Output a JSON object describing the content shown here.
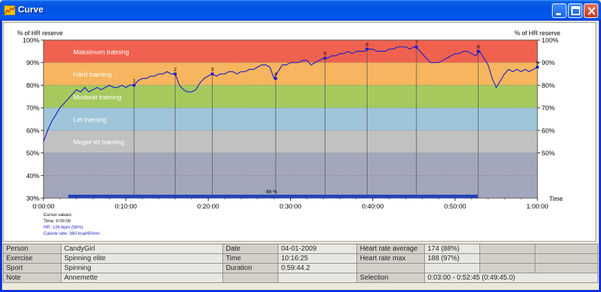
{
  "window": {
    "title": "Curve",
    "buttons": {
      "minimize": "minimize",
      "maximize": "maximize",
      "close": "close"
    }
  },
  "chart": {
    "left_axis_title": "% of HR reserve",
    "right_axis_title": "% of HR reserve",
    "time_axis_label": "Time",
    "zones": [
      {
        "name": "Maksimum træning",
        "from": 90,
        "to": 100,
        "color": "#f0624f"
      },
      {
        "name": "Hård træning",
        "from": 80,
        "to": 90,
        "color": "#f6b55e"
      },
      {
        "name": "Moderat træning",
        "from": 70,
        "to": 80,
        "color": "#a6c95e"
      },
      {
        "name": "Let træning",
        "from": 60,
        "to": 70,
        "color": "#9ec5d9"
      },
      {
        "name": "Meget let træning",
        "from": 50,
        "to": 60,
        "color": "#c1c1c1"
      },
      {
        "name": "",
        "from": 30,
        "to": 50,
        "color": "#a3a7bb"
      }
    ],
    "selection_label": "88 %",
    "cursor": {
      "heading": "Cursor values:",
      "time": "Time: 0:00:00",
      "hr": "HR: 126 bpm (56%)",
      "calorie": "Calorie rate: 380 kcal/60min"
    }
  },
  "chart_data": {
    "type": "line",
    "x_unit": "minutes",
    "xlim": [
      0,
      60
    ],
    "ylim": [
      30,
      100
    ],
    "yticks": [
      "30%",
      "40%",
      "50%",
      "60%",
      "70%",
      "80%",
      "90%",
      "100%"
    ],
    "yticks_right": [
      "50%",
      "60%",
      "70%",
      "80%",
      "90%",
      "100%"
    ],
    "xticks": [
      "0:00:00",
      "0:10:00",
      "0:20:00",
      "0:30:00",
      "0:40:00",
      "0:50:00",
      "1:00:00"
    ],
    "grid": true,
    "series": [
      {
        "color": "#1c1ccc",
        "points": [
          [
            0,
            55
          ],
          [
            0.5,
            60
          ],
          [
            1,
            64
          ],
          [
            1.5,
            67
          ],
          [
            2,
            70
          ],
          [
            2.5,
            72
          ],
          [
            3,
            74
          ],
          [
            3.5,
            76
          ],
          [
            4,
            78
          ],
          [
            4.5,
            77
          ],
          [
            5,
            79
          ],
          [
            5.5,
            77
          ],
          [
            6,
            78
          ],
          [
            6.5,
            79
          ],
          [
            7,
            78
          ],
          [
            7.5,
            79
          ],
          [
            8,
            80
          ],
          [
            8.5,
            79
          ],
          [
            9,
            79
          ],
          [
            9.5,
            80
          ],
          [
            10,
            79
          ],
          [
            10.5,
            80
          ],
          [
            11,
            80
          ],
          [
            11.5,
            82
          ],
          [
            12,
            83
          ],
          [
            12.5,
            83
          ],
          [
            13,
            84
          ],
          [
            13.5,
            84
          ],
          [
            14,
            85
          ],
          [
            14.5,
            85
          ],
          [
            15,
            86
          ],
          [
            15.5,
            85
          ],
          [
            16,
            85
          ],
          [
            16.5,
            80
          ],
          [
            17,
            78
          ],
          [
            17.5,
            77
          ],
          [
            18,
            77
          ],
          [
            18.5,
            78
          ],
          [
            19,
            81
          ],
          [
            19.5,
            83
          ],
          [
            20,
            84
          ],
          [
            20.5,
            85
          ],
          [
            21,
            84
          ],
          [
            21.5,
            85
          ],
          [
            22,
            85
          ],
          [
            22.5,
            86
          ],
          [
            23,
            86
          ],
          [
            23.5,
            85
          ],
          [
            24,
            86
          ],
          [
            24.5,
            86
          ],
          [
            25,
            87
          ],
          [
            25.5,
            87
          ],
          [
            26,
            88
          ],
          [
            26.5,
            89
          ],
          [
            27,
            89
          ],
          [
            27.5,
            88
          ],
          [
            28,
            83
          ],
          [
            28.5,
            86
          ],
          [
            29,
            89
          ],
          [
            29.5,
            89
          ],
          [
            30,
            90
          ],
          [
            30.5,
            90
          ],
          [
            31,
            90
          ],
          [
            31.5,
            91
          ],
          [
            32,
            91
          ],
          [
            32.5,
            89
          ],
          [
            33,
            90
          ],
          [
            33.5,
            91
          ],
          [
            34,
            92
          ],
          [
            34.5,
            92
          ],
          [
            35,
            93
          ],
          [
            35.5,
            93
          ],
          [
            36,
            94
          ],
          [
            36.5,
            94
          ],
          [
            37,
            95
          ],
          [
            37.5,
            94
          ],
          [
            38,
            95
          ],
          [
            38.5,
            95
          ],
          [
            39,
            95
          ],
          [
            39.5,
            96
          ],
          [
            40,
            96
          ],
          [
            40.5,
            95
          ],
          [
            41,
            95
          ],
          [
            41.5,
            95
          ],
          [
            42,
            96
          ],
          [
            42.5,
            96
          ],
          [
            43,
            97
          ],
          [
            43.5,
            97
          ],
          [
            44,
            97
          ],
          [
            44.5,
            96
          ],
          [
            45,
            97
          ],
          [
            45.5,
            96
          ],
          [
            46,
            94
          ],
          [
            46.5,
            92
          ],
          [
            47,
            90
          ],
          [
            47.5,
            90
          ],
          [
            48,
            90
          ],
          [
            48.5,
            91
          ],
          [
            49,
            92
          ],
          [
            49.5,
            93
          ],
          [
            50,
            94
          ],
          [
            50.5,
            94
          ],
          [
            51,
            95
          ],
          [
            51.5,
            95
          ],
          [
            52,
            94
          ],
          [
            52.5,
            93
          ],
          [
            53,
            95
          ],
          [
            53.5,
            92
          ],
          [
            54,
            89
          ],
          [
            54.5,
            83
          ],
          [
            55,
            79
          ],
          [
            55.5,
            82
          ],
          [
            56,
            85
          ],
          [
            56.5,
            87
          ],
          [
            57,
            86
          ],
          [
            57.5,
            87
          ],
          [
            58,
            86
          ],
          [
            58.5,
            87
          ],
          [
            59,
            86
          ],
          [
            59.5,
            87
          ],
          [
            60,
            88
          ]
        ]
      }
    ],
    "markers": [
      {
        "label": "1",
        "x": 11,
        "y": 80
      },
      {
        "label": "2",
        "x": 16,
        "y": 85
      },
      {
        "label": "3",
        "x": 20.5,
        "y": 85
      },
      {
        "label": "4",
        "x": 28.2,
        "y": 83
      },
      {
        "label": "5",
        "x": 34.2,
        "y": 92
      },
      {
        "label": "6",
        "x": 39.3,
        "y": 96
      },
      {
        "label": "7",
        "x": 45.3,
        "y": 97
      },
      {
        "label": "8",
        "x": 52.8,
        "y": 95
      },
      {
        "label": "9",
        "x": 60,
        "y": 88
      }
    ],
    "selection": {
      "from": 3,
      "to": 52.75,
      "label": "88 %"
    }
  },
  "info": {
    "rows": [
      {
        "l1": "Person",
        "v1": "CandyGirl",
        "l2": "Date",
        "v2": "04-01-2009",
        "l3": "Heart rate average",
        "v3": "174 (88%)"
      },
      {
        "l1": "Exercise",
        "v1": "Spinning elite",
        "l2": "Time",
        "v2": "10:16:25",
        "l3": "Heart rate max",
        "v3": "188 (97%)"
      },
      {
        "l1": "Sport",
        "v1": "Spinning",
        "l2": "Duration",
        "v2": "0:59:44.2",
        "l3": "",
        "v3": ""
      },
      {
        "l1": "Note",
        "v1": "Annemette",
        "l2": "",
        "v2": "",
        "l3": "Selection",
        "v3": "0:03:00 - 0:52:45 (0:49:45.0)"
      }
    ]
  }
}
